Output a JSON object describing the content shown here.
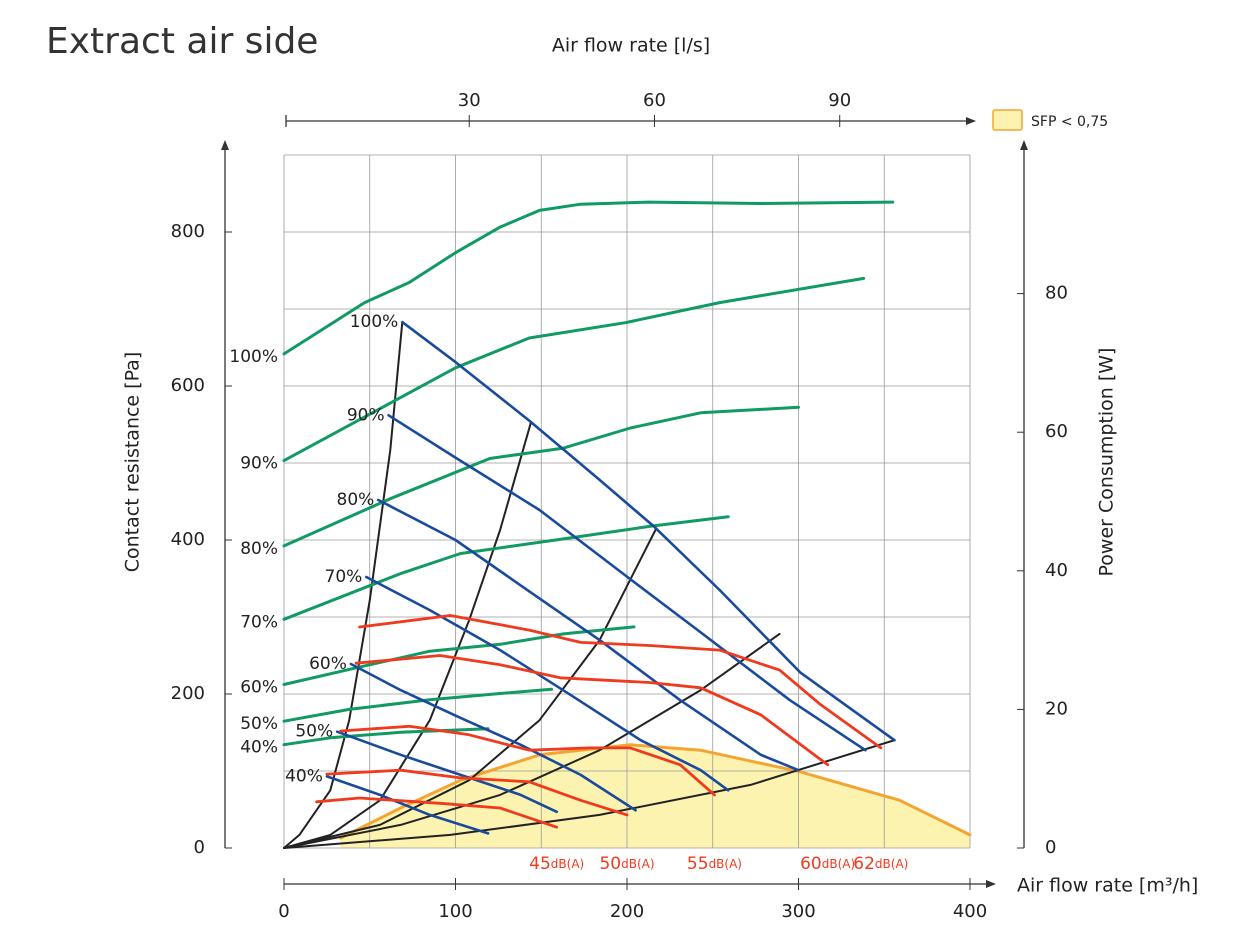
{
  "chart_data": {
    "type": "line",
    "title": "Extract air side",
    "x2_title": "Air flow rate [l/s]",
    "x_title": "Air flow rate [m³/h]",
    "y_title": "Contact resistance [Pa]",
    "y2_title": "Power Consumption [W]",
    "xlim": [
      0,
      400
    ],
    "xticks": [
      0,
      100,
      200,
      300,
      400
    ],
    "x2lim": [
      0,
      111.1
    ],
    "x2ticks": [
      30,
      60,
      90
    ],
    "ylim": [
      0,
      900
    ],
    "yticks": [
      0,
      200,
      400,
      600,
      800
    ],
    "y2lim": [
      0,
      100
    ],
    "y2ticks": [
      0,
      20,
      40,
      60,
      80
    ],
    "grid": true,
    "grid_x": [
      0,
      50,
      100,
      150,
      200,
      250,
      300,
      350,
      400
    ],
    "grid_y": [
      0,
      100,
      200,
      300,
      400,
      500,
      600,
      700,
      800,
      900
    ],
    "legend_corner": "top-right",
    "sfp_area": {
      "name": "SFP < 0,75",
      "color": "#fdf3b0",
      "edge": "#f5a431",
      "x": [
        33,
        68,
        103,
        149,
        202,
        243,
        301,
        359,
        400
      ],
      "values": [
        13,
        52,
        88,
        121,
        134,
        127,
        99,
        62,
        17
      ]
    },
    "power_curves": [
      {
        "name": "100%",
        "color": "#119a63",
        "axis": "y2",
        "x": [
          0,
          47,
          73,
          100,
          126,
          149,
          173,
          213,
          278,
          355
        ],
        "values": [
          71.3,
          78.7,
          81.6,
          85.9,
          89.6,
          92,
          92.9,
          93.2,
          93,
          93.2
        ]
      },
      {
        "name": "90%",
        "color": "#119a63",
        "axis": "y2",
        "x": [
          0,
          62,
          100,
          143,
          199,
          254,
          338
        ],
        "values": [
          55.9,
          64.2,
          69.3,
          73.6,
          75.8,
          78.7,
          82.2
        ]
      },
      {
        "name": "80%",
        "color": "#119a63",
        "axis": "y2",
        "x": [
          0,
          62,
          120,
          163,
          202,
          243,
          300
        ],
        "values": [
          43.6,
          50.4,
          56.2,
          57.7,
          60.6,
          62.8,
          63.6
        ]
      },
      {
        "name": "70%",
        "color": "#119a63",
        "axis": "y2",
        "x": [
          0,
          68,
          103,
          163,
          213,
          259
        ],
        "values": [
          33,
          39.6,
          42.5,
          44.6,
          46.4,
          47.8
        ]
      },
      {
        "name": "60%",
        "color": "#119a63",
        "axis": "y2",
        "x": [
          0,
          44,
          85,
          126,
          163,
          204
        ],
        "values": [
          23.6,
          26.1,
          28.4,
          29.4,
          30.9,
          31.9
        ]
      },
      {
        "name": "50%",
        "color": "#119a63",
        "axis": "y2",
        "x": [
          0,
          38,
          85,
          126,
          156
        ],
        "values": [
          18.3,
          20,
          21.4,
          22.3,
          22.9
        ]
      },
      {
        "name": "40%",
        "color": "#119a63",
        "axis": "y2",
        "x": [
          0,
          27,
          68,
          119
        ],
        "values": [
          14.9,
          15.9,
          16.7,
          17.2
        ]
      }
    ],
    "pressure_curves": [
      {
        "name": "100%",
        "color": "#1a4a9c",
        "x": [
          69,
          100,
          143,
          184,
          216,
          254,
          301,
          356
        ],
        "values": [
          683,
          631,
          555,
          478,
          417,
          335,
          228,
          140
        ]
      },
      {
        "name": "90%",
        "color": "#1a4a9c",
        "x": [
          61,
          100,
          149,
          199,
          243,
          295,
          339
        ],
        "values": [
          562,
          507,
          439,
          354,
          280,
          192,
          127
        ]
      },
      {
        "name": "80%",
        "color": "#1a4a9c",
        "x": [
          55,
          100,
          138,
          184,
          231,
          278,
          300
        ],
        "values": [
          452,
          400,
          341,
          270,
          192,
          121,
          101
        ]
      },
      {
        "name": "70%",
        "color": "#1a4a9c",
        "x": [
          48,
          85,
          126,
          167,
          208,
          243,
          259
        ],
        "values": [
          352,
          309,
          257,
          199,
          140,
          101,
          75
        ]
      },
      {
        "name": "60%",
        "color": "#1a4a9c",
        "x": [
          39,
          68,
          103,
          138,
          173,
          205
        ],
        "values": [
          239,
          205,
          169,
          134,
          95,
          49
        ]
      },
      {
        "name": "50%",
        "color": "#1a4a9c",
        "x": [
          31,
          68,
          103,
          138,
          159
        ],
        "values": [
          151,
          121,
          95,
          69,
          47
        ]
      },
      {
        "name": "40%",
        "color": "#1a4a9c",
        "x": [
          25,
          56,
          85,
          119
        ],
        "values": [
          93,
          69,
          43,
          19
        ]
      }
    ],
    "system_curves": [
      {
        "color": "#222222",
        "x": [
          0,
          9,
          27,
          38,
          50,
          62,
          69
        ],
        "values": [
          0,
          17,
          75,
          166,
          322,
          517,
          683
        ]
      },
      {
        "color": "#222222",
        "x": [
          0,
          27,
          56,
          85,
          108,
          126,
          144
        ],
        "values": [
          0,
          17,
          62,
          166,
          296,
          413,
          553
        ]
      },
      {
        "color": "#222222",
        "x": [
          0,
          56,
          108,
          149,
          184,
          217
        ],
        "values": [
          0,
          30,
          88,
          166,
          270,
          415
        ]
      },
      {
        "color": "#222222",
        "x": [
          0,
          68,
          126,
          184,
          243,
          289
        ],
        "values": [
          0,
          30,
          69,
          127,
          205,
          278
        ]
      },
      {
        "color": "#222222",
        "x": [
          0,
          97,
          184,
          272,
          356
        ],
        "values": [
          0,
          17,
          43,
          82,
          140
        ]
      }
    ],
    "noise_unit": "dB(A)",
    "noise_curves": [
      {
        "name": "45",
        "color": "#f03a1e",
        "x": [
          19,
          44,
          91,
          126,
          159
        ],
        "values": [
          60,
          65,
          58,
          52,
          27
        ]
      },
      {
        "name": "50",
        "color": "#f03a1e",
        "x": [
          25,
          68,
          103,
          143,
          173,
          200
        ],
        "values": [
          96,
          101,
          91,
          86,
          62,
          43
        ]
      },
      {
        "name": "55",
        "color": "#f03a1e",
        "x": [
          33,
          73,
          108,
          143,
          178,
          202,
          231,
          251
        ],
        "values": [
          152,
          158,
          147,
          127,
          130,
          130,
          108,
          69
        ]
      },
      {
        "name": "60",
        "color": "#f03a1e",
        "x": [
          42,
          91,
          126,
          161,
          213,
          243,
          278,
          317
        ],
        "values": [
          240,
          250,
          238,
          221,
          215,
          208,
          173,
          108
        ]
      },
      {
        "name": "62",
        "color": "#f03a1e",
        "x": [
          44,
          97,
          143,
          173,
          213,
          254,
          289,
          313,
          348
        ],
        "values": [
          287,
          302,
          283,
          267,
          263,
          257,
          231,
          186,
          130
        ]
      }
    ]
  }
}
